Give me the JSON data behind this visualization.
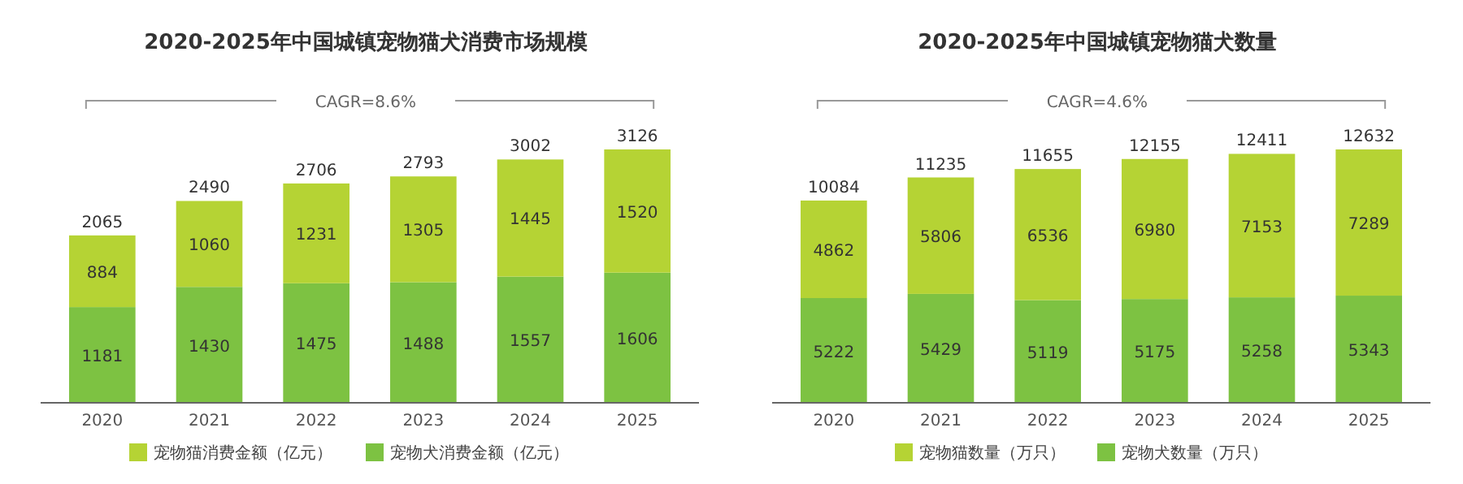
{
  "chart_data": [
    {
      "type": "bar",
      "stacked": true,
      "title": "2020-2025年中国城镇宠物猫犬消费市场规模",
      "annotations": [
        "CAGR=8.6%"
      ],
      "categories": [
        "2020",
        "2021",
        "2022",
        "2023",
        "2024",
        "2025"
      ],
      "series": [
        {
          "name": "宠物犬消费金额（亿元）",
          "color": "#7dc242",
          "values": [
            1181,
            1430,
            1475,
            1488,
            1557,
            1606
          ]
        },
        {
          "name": "宠物猫消费金额（亿元）",
          "color": "#b5d334",
          "values": [
            884,
            1060,
            1231,
            1305,
            1445,
            1520
          ]
        }
      ],
      "totals": [
        "2065",
        "2490",
        "2706",
        "2793",
        "3002",
        "3126"
      ],
      "data_labels": true,
      "legend": "bottom"
    },
    {
      "type": "bar",
      "stacked": true,
      "title": "2020-2025年中国城镇宠物猫犬数量",
      "annotations": [
        "CAGR=4.6%"
      ],
      "categories": [
        "2020",
        "2021",
        "2022",
        "2023",
        "2024",
        "2025"
      ],
      "series": [
        {
          "name": "宠物犬数量（万只）",
          "color": "#7dc242",
          "values": [
            5222,
            5429,
            5119,
            5175,
            5258,
            5343
          ]
        },
        {
          "name": "宠物猫数量（万只）",
          "color": "#b5d334",
          "values": [
            4862,
            5806,
            6536,
            6980,
            7153,
            7289
          ]
        }
      ],
      "totals": [
        "10084",
        "11235",
        "11655",
        "12155",
        "12411",
        "12632"
      ],
      "data_labels": true,
      "legend": "bottom"
    }
  ]
}
